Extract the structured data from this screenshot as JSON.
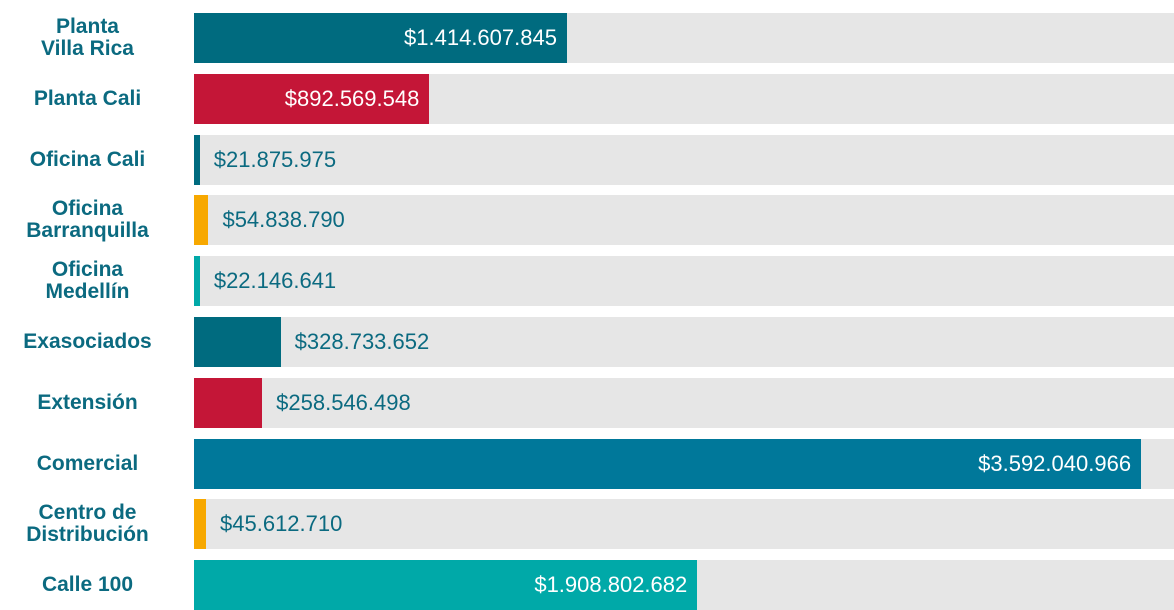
{
  "chart_data": {
    "type": "bar",
    "orientation": "horizontal",
    "categories": [
      "Planta\nVilla Rica",
      "Planta Cali",
      "Oficina Cali",
      "Oficina\nBarranquilla",
      "Oficina\nMedellín",
      "Exasociados",
      "Extensión",
      "Comercial",
      "Centro de\nDistribución",
      "Calle 100"
    ],
    "values": [
      1414607845,
      892569548,
      21875975,
      54838790,
      22146641,
      328733652,
      258546498,
      3592040966,
      45612710,
      1908802682
    ],
    "value_labels": [
      "$1.414.607.845",
      "$892.569.548",
      "$21.875.975",
      "$54.838.790",
      "$22.146.641",
      "$328.733.652",
      "$258.546.498",
      "$3.592.040.966",
      "$45.612.710",
      "$1.908.802.682"
    ],
    "colors": [
      "#006b7f",
      "#c41637",
      "#006b7f",
      "#f7a800",
      "#00a9a8",
      "#006b7f",
      "#c41637",
      "#00789a",
      "#f7a800",
      "#00a9a8"
    ],
    "xlim": [
      0,
      3717000000
    ]
  }
}
